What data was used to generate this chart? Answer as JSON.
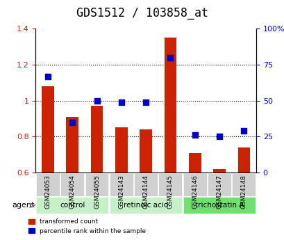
{
  "title": "GDS1512 / 103858_at",
  "samples": [
    "GSM24053",
    "GSM24054",
    "GSM24055",
    "GSM24143",
    "GSM24144",
    "GSM24145",
    "GSM24146",
    "GSM24147",
    "GSM24148"
  ],
  "red_values": [
    1.08,
    0.91,
    0.97,
    0.85,
    0.84,
    1.35,
    0.71,
    0.62,
    0.74
  ],
  "blue_values": [
    67,
    35,
    50,
    49,
    49,
    80,
    26,
    25,
    29
  ],
  "ylim_left": [
    0.6,
    1.4
  ],
  "ylim_right": [
    0,
    100
  ],
  "yticks_left": [
    0.6,
    0.8,
    1.0,
    1.2,
    1.4
  ],
  "yticks_right": [
    0,
    25,
    50,
    75,
    100
  ],
  "ytick_labels_left": [
    "0.6",
    "0.8",
    "1",
    "1.2",
    "1.4"
  ],
  "ytick_labels_right": [
    "0",
    "25",
    "50",
    "75",
    "100%"
  ],
  "grid_values": [
    0.8,
    1.0,
    1.2
  ],
  "groups": [
    {
      "label": "control",
      "indices": [
        0,
        1,
        2
      ],
      "color": "#c8f0c8"
    },
    {
      "label": "retinoic acid",
      "indices": [
        3,
        4,
        5
      ],
      "color": "#c8f0c8"
    },
    {
      "label": "trichostatin A",
      "indices": [
        6,
        7,
        8
      ],
      "color": "#70e070"
    }
  ],
  "bar_color": "#cc2200",
  "dot_color": "#0000cc",
  "bar_bottom": 0.6,
  "bar_width": 0.5,
  "dot_size": 40,
  "agent_label": "agent",
  "legend_red": "transformed count",
  "legend_blue": "percentile rank within the sample",
  "title_fontsize": 12,
  "tick_fontsize": 8,
  "label_fontsize": 9
}
